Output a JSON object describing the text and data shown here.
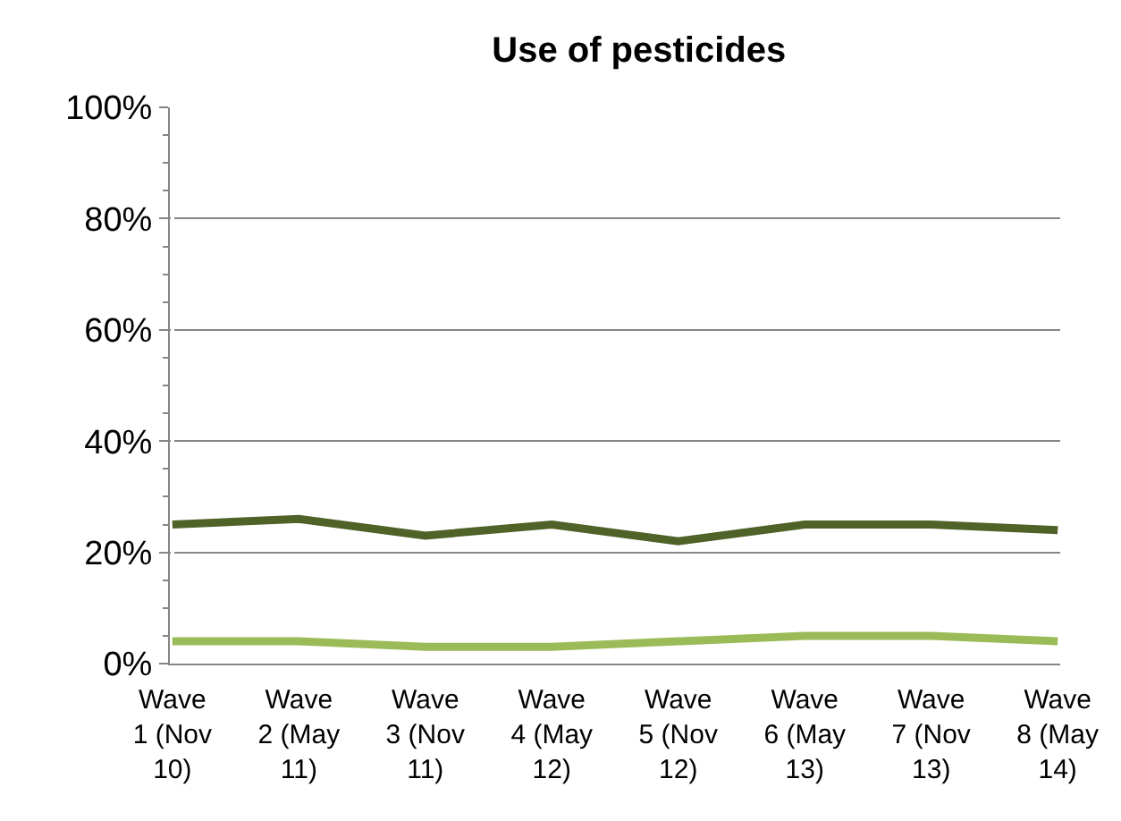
{
  "chart_data": {
    "type": "line",
    "title": "Use of pesticides",
    "categories": [
      "Wave 1 (Nov 10)",
      "Wave 2 (May 11)",
      "Wave 3 (Nov 11)",
      "Wave 4 (May 12)",
      "Wave 5 (Nov 12)",
      "Wave 6 (May 13)",
      "Wave 7 (Nov 13)",
      "Wave 8 (May 14)"
    ],
    "series": [
      {
        "color": "#4f6228",
        "values": [
          25,
          26,
          23,
          25,
          22,
          25,
          25,
          24
        ]
      },
      {
        "color": "#9bbb59",
        "values": [
          4,
          4,
          3,
          3,
          4,
          5,
          5,
          4
        ]
      }
    ],
    "ylim": [
      0,
      100
    ],
    "yticks": [
      {
        "value": 0,
        "label": "0%"
      },
      {
        "value": 20,
        "label": "20%"
      },
      {
        "value": 40,
        "label": "40%"
      },
      {
        "value": 60,
        "label": "60%"
      },
      {
        "value": 80,
        "label": "80%"
      },
      {
        "value": 100,
        "label": "100%"
      }
    ],
    "grid": "y",
    "marker": "none",
    "line_style": "solid"
  }
}
